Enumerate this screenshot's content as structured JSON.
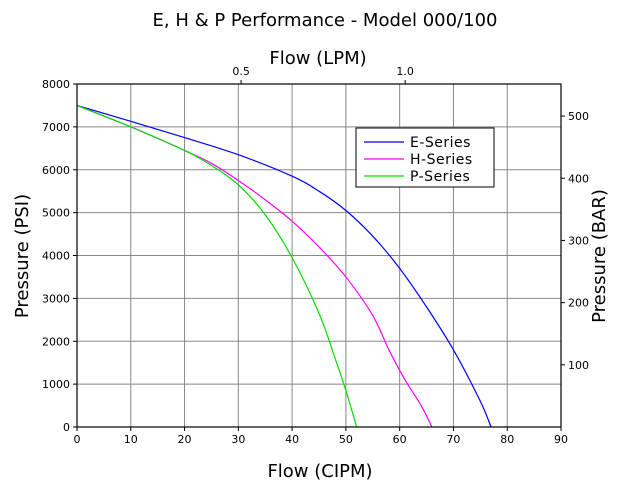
{
  "chart_data": {
    "type": "line",
    "title": "E, H & P Performance - Model 000/100",
    "xlabel": "Flow (CIPM)",
    "ylabel": "Pressure (PSI)",
    "x2label": "Flow (LPM)",
    "y2label": "Pressure (BAR)",
    "xlim": [
      0,
      90
    ],
    "ylim": [
      0,
      8000
    ],
    "x_ticks": [
      0,
      10,
      20,
      30,
      40,
      50,
      60,
      70,
      80,
      90
    ],
    "y_ticks": [
      0,
      1000,
      2000,
      3000,
      4000,
      5000,
      6000,
      7000,
      8000
    ],
    "x2_ticks": [
      {
        "value": 0.5,
        "label": "0.5"
      },
      {
        "value": 1.0,
        "label": "1.0"
      }
    ],
    "y2_ticks": [
      {
        "value": 100,
        "label": "100"
      },
      {
        "value": 200,
        "label": "200"
      },
      {
        "value": 300,
        "label": "300"
      },
      {
        "value": 400,
        "label": "400"
      },
      {
        "value": 500,
        "label": "500"
      }
    ],
    "grid": true,
    "legend_position": "upper-right",
    "series": [
      {
        "name": "E-Series",
        "color": "#0000ff",
        "x": [
          0,
          10,
          20,
          30,
          40,
          45,
          50,
          55,
          60,
          65,
          70,
          75,
          77
        ],
        "y": [
          7500,
          7130,
          6750,
          6350,
          5850,
          5500,
          5050,
          4450,
          3700,
          2800,
          1800,
          600,
          0
        ]
      },
      {
        "name": "H-Series",
        "color": "#ff00ff",
        "x": [
          0,
          10,
          20,
          25,
          30,
          35,
          40,
          45,
          50,
          55,
          58,
          61,
          64,
          66
        ],
        "y": [
          7500,
          7000,
          6450,
          6150,
          5750,
          5300,
          4800,
          4200,
          3500,
          2600,
          1800,
          1100,
          500,
          0
        ]
      },
      {
        "name": "P-Series",
        "color": "#00dd00",
        "x": [
          0,
          10,
          20,
          25,
          30,
          35,
          40,
          45,
          48,
          50,
          52
        ],
        "y": [
          7500,
          7000,
          6450,
          6100,
          5650,
          4950,
          3950,
          2650,
          1600,
          850,
          0
        ]
      }
    ]
  }
}
